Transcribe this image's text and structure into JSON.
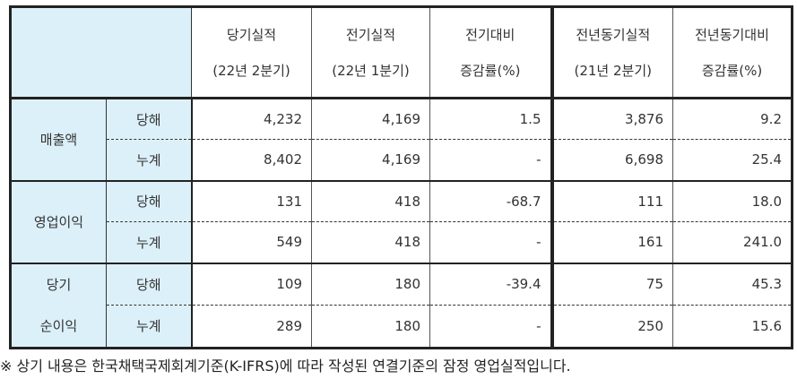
{
  "headers": [
    {
      "line1": "당기실적",
      "line2": "(22년 2분기)"
    },
    {
      "line1": "전기실적",
      "line2": "(22년 1분기)"
    },
    {
      "line1": "전기대비",
      "line2": "증감률(%)"
    },
    {
      "line1": "전년동기실적",
      "line2": "(21년 2분기)"
    },
    {
      "line1": "전년동기대비",
      "line2": "증감률(%)"
    }
  ],
  "groups": [
    {
      "label_lines": [
        "매출액"
      ],
      "rows": [
        {
          "sub": "당해",
          "values": [
            "4,232",
            "4,169",
            "1.5",
            "3,876",
            "9.2"
          ]
        },
        {
          "sub": "누계",
          "values": [
            "8,402",
            "4,169",
            "-",
            "6,698",
            "25.4"
          ]
        }
      ]
    },
    {
      "label_lines": [
        "영업이익"
      ],
      "rows": [
        {
          "sub": "당해",
          "values": [
            "131",
            "418",
            "-68.7",
            "111",
            "18.0"
          ]
        },
        {
          "sub": "누계",
          "values": [
            "549",
            "418",
            "-",
            "161",
            "241.0"
          ]
        }
      ]
    },
    {
      "label_lines": [
        "당기",
        "순이익"
      ],
      "rows": [
        {
          "sub": "당해",
          "values": [
            "109",
            "180",
            "-39.4",
            "75",
            "45.3"
          ]
        },
        {
          "sub": "누계",
          "values": [
            "289",
            "180",
            "-",
            "250",
            "15.6"
          ]
        }
      ]
    }
  ],
  "footnote": "※ 상기 내용은 한국채택국제회계기준(K-IFRS)에 따라 작성된 연결기준의 잠정 영업실적입니다.",
  "colors": {
    "header_bg": "#dcf0f9",
    "border": "#222222"
  }
}
